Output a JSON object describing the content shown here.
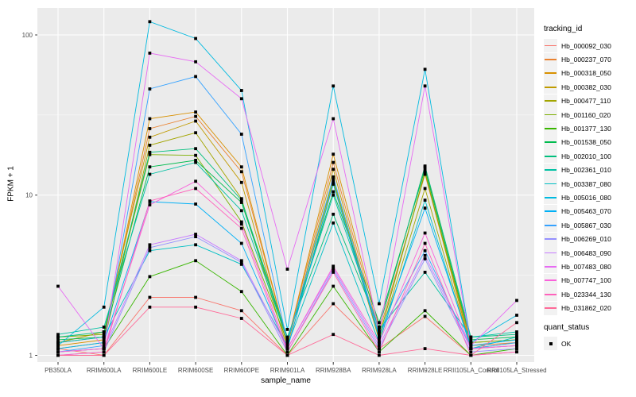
{
  "figure": {
    "background": "#FFFFFF",
    "panel_background": "#EBEBEB",
    "grid_color": "#FFFFFF",
    "tick_color": "#333333",
    "tick_label_color": "#4D4D4D",
    "point_color": "#000000",
    "legend_key_background": "#F2F2F2"
  },
  "legend": {
    "tracking_title": "tracking_id",
    "quant_title": "quant_status",
    "quant_items": [
      {
        "label": "OK",
        "marker": "black-square"
      }
    ]
  },
  "chart_data": {
    "type": "line",
    "xlabel": "sample_name",
    "ylabel": "FPKM + 1",
    "yscale": "log10",
    "y_ticks": [
      100,
      10,
      1
    ],
    "y_tick_labels": [
      "100",
      "10",
      "1"
    ],
    "y_minor_ticks": [
      31.623,
      3.1623
    ],
    "ylim_approx": [
      0.93,
      160
    ],
    "grid": true,
    "legend_title": "tracking_id",
    "legend_position": "right",
    "point_shape": "black-square",
    "point_legend": {
      "title": "quant_status",
      "items": [
        "OK"
      ]
    },
    "x": [
      "PB350LA",
      "RRIM600LA",
      "RRIM600LE",
      "RRIM600SE",
      "RRIM600PE",
      "RRIM901LA",
      "RRIM928BA",
      "RRIM928LA",
      "RRIM928LE",
      "RRII105LA_Control",
      "RRII105LA_Stressed"
    ],
    "series": [
      {
        "name": "Hb_000092_030",
        "color": "#F8766D",
        "values": [
          1.1,
          1.0,
          2.3,
          2.3,
          1.9,
          1.0,
          2.1,
          1.1,
          1.75,
          1.0,
          1.05
        ]
      },
      {
        "name": "Hb_000237_070",
        "color": "#EA8331",
        "values": [
          1.2,
          1.3,
          26.0,
          31.0,
          14.0,
          1.2,
          16.0,
          1.4,
          13.5,
          1.15,
          1.2
        ]
      },
      {
        "name": "Hb_000318_050",
        "color": "#D89000",
        "values": [
          1.15,
          1.25,
          30.0,
          33.0,
          15.0,
          1.2,
          18.0,
          1.5,
          15.0,
          1.2,
          1.25
        ]
      },
      {
        "name": "Hb_000382_030",
        "color": "#C09B00",
        "values": [
          1.2,
          1.4,
          23.0,
          29.0,
          12.0,
          1.15,
          14.5,
          1.3,
          14.0,
          1.1,
          1.2
        ]
      },
      {
        "name": "Hb_000477_110",
        "color": "#A3A500",
        "values": [
          1.1,
          1.2,
          20.5,
          24.5,
          9.5,
          1.1,
          12.0,
          1.25,
          11.0,
          1.1,
          1.15
        ]
      },
      {
        "name": "Hb_001160_020",
        "color": "#7CAE00",
        "values": [
          1.3,
          1.35,
          17.9,
          17.7,
          6.8,
          1.2,
          12.5,
          1.3,
          13.8,
          1.2,
          1.25
        ]
      },
      {
        "name": "Hb_001377_130",
        "color": "#39B600",
        "values": [
          1.05,
          1.1,
          3.1,
          3.9,
          2.5,
          1.0,
          2.7,
          1.05,
          1.9,
          1.0,
          1.1
        ]
      },
      {
        "name": "Hb_001538_050",
        "color": "#00BB4E",
        "values": [
          1.25,
          1.3,
          15.0,
          16.5,
          9.0,
          1.25,
          10.5,
          1.6,
          14.5,
          1.25,
          1.3
        ]
      },
      {
        "name": "Hb_002010_100",
        "color": "#00BF7D",
        "values": [
          1.3,
          1.4,
          18.5,
          19.5,
          9.3,
          1.3,
          7.6,
          1.5,
          15.2,
          1.3,
          1.35
        ]
      },
      {
        "name": "Hb_002361_010",
        "color": "#00C1A3",
        "values": [
          1.35,
          1.5,
          13.5,
          16.0,
          8.0,
          1.25,
          10.0,
          1.45,
          3.3,
          1.3,
          1.4
        ]
      },
      {
        "name": "Hb_003387_080",
        "color": "#00BFC4",
        "values": [
          1.2,
          1.3,
          4.5,
          4.9,
          3.7,
          1.15,
          6.7,
          1.2,
          9.3,
          1.1,
          1.3
        ]
      },
      {
        "name": "Hb_005016_080",
        "color": "#00BAE0",
        "values": [
          1.15,
          2.0,
          121.0,
          95.0,
          45.0,
          1.45,
          48.0,
          2.1,
          61.0,
          1.2,
          1.78
        ]
      },
      {
        "name": "Hb_005463_070",
        "color": "#00B0F6",
        "values": [
          1.1,
          1.2,
          9.1,
          8.8,
          5.0,
          1.1,
          11.7,
          1.3,
          8.3,
          1.15,
          1.25
        ]
      },
      {
        "name": "Hb_005867_030",
        "color": "#35A2FF",
        "values": [
          1.05,
          1.15,
          46.0,
          55.0,
          24.0,
          1.2,
          13.0,
          1.35,
          4.5,
          1.1,
          1.2
        ]
      },
      {
        "name": "Hb_006269_010",
        "color": "#9590FF",
        "values": [
          1.0,
          1.05,
          4.7,
          5.5,
          3.8,
          1.05,
          3.4,
          1.1,
          4.0,
          1.05,
          1.1
        ]
      },
      {
        "name": "Hb_006483_090",
        "color": "#C77CFF",
        "values": [
          1.05,
          1.1,
          4.9,
          5.7,
          3.9,
          1.1,
          3.5,
          1.15,
          4.2,
          1.1,
          1.15
        ]
      },
      {
        "name": "Hb_007483_080",
        "color": "#E76BF3",
        "values": [
          2.7,
          1.1,
          77.0,
          68.0,
          40.0,
          3.45,
          30.0,
          1.4,
          48.0,
          1.15,
          2.2
        ]
      },
      {
        "name": "Hb_007747_100",
        "color": "#FA62DB",
        "values": [
          1.05,
          1.1,
          8.7,
          12.2,
          6.6,
          1.1,
          3.6,
          1.2,
          5.8,
          1.1,
          1.15
        ]
      },
      {
        "name": "Hb_023344_130",
        "color": "#FF62BC",
        "values": [
          1.0,
          1.05,
          9.2,
          11.0,
          6.2,
          1.05,
          3.3,
          1.05,
          5.0,
          1.0,
          1.05
        ]
      },
      {
        "name": "Hb_031862_020",
        "color": "#FF6A98",
        "values": [
          1.0,
          1.0,
          2.0,
          2.0,
          1.7,
          1.0,
          1.35,
          1.0,
          1.1,
          1.0,
          1.6
        ]
      }
    ]
  }
}
